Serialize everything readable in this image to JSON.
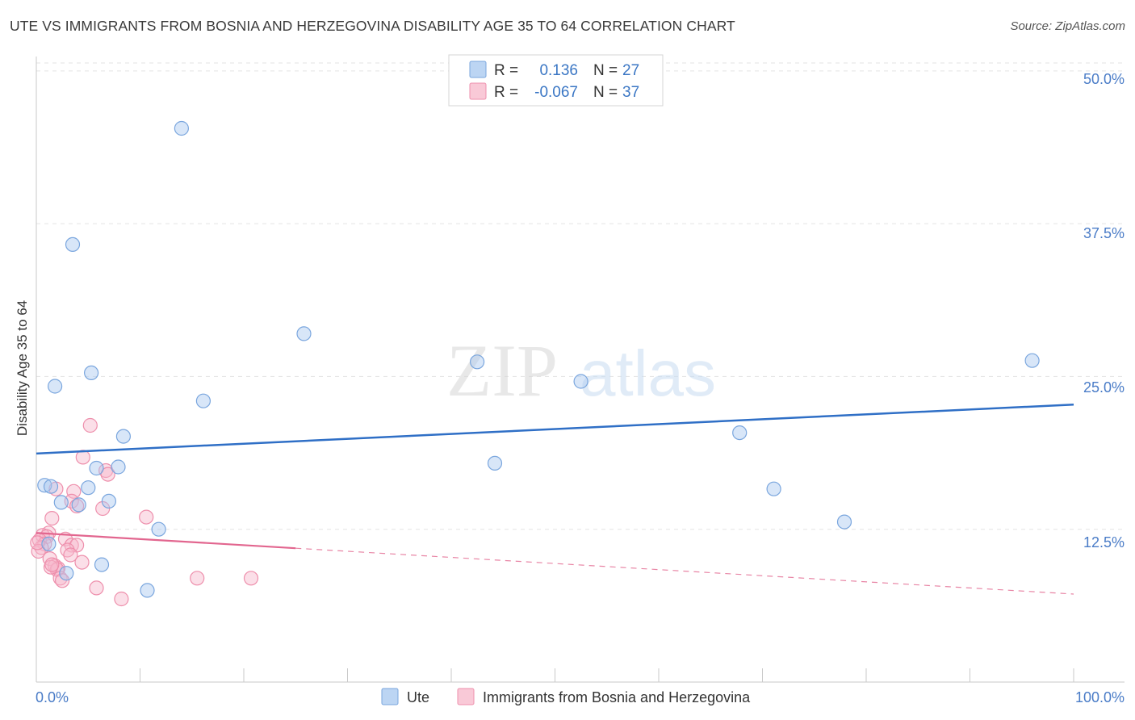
{
  "header": {
    "title": "UTE VS IMMIGRANTS FROM BOSNIA AND HERZEGOVINA DISABILITY AGE 35 TO 64 CORRELATION CHART",
    "source": "Source: ZipAtlas.com"
  },
  "watermark": {
    "part1": "ZIP",
    "part2": "atlas"
  },
  "colors": {
    "ute_fill": "#a8c8f0",
    "ute_stroke": "#7aa6de",
    "ute_line": "#2f6fc6",
    "bosnia_fill": "#f7b8cb",
    "bosnia_stroke": "#ee8fac",
    "bosnia_line": "#e2668f",
    "tick_text": "#4a7cc7",
    "grid": "#e3e3e3"
  },
  "legend": {
    "rows": [
      {
        "r_label": "R =",
        "r_value": "0.136",
        "n_label": "N =",
        "n_value": "27"
      },
      {
        "r_label": "R =",
        "r_value": "-0.067",
        "n_label": "N =",
        "n_value": "37"
      }
    ]
  },
  "chart_data": {
    "type": "scatter",
    "title": "UTE VS IMMIGRANTS FROM BOSNIA AND HERZEGOVINA DISABILITY AGE 35 TO 64 CORRELATION CHART",
    "xlabel": "",
    "ylabel": "Disability Age 35 to 64",
    "xlim": [
      0,
      100
    ],
    "ylim": [
      0,
      52.5
    ],
    "x_tick_labels": [
      "0.0%",
      "100.0%"
    ],
    "y_ticks": [
      12.5,
      25.0,
      37.5,
      50.0
    ],
    "y_tick_labels": [
      "12.5%",
      "25.0%",
      "37.5%",
      "50.0%"
    ],
    "grid": true,
    "legend_position": "top-center",
    "series": [
      {
        "name": "Ute",
        "r": 0.136,
        "n": 27,
        "trend": {
          "x": [
            0,
            100
          ],
          "y": [
            18.7,
            22.7
          ],
          "dashed_from": null
        },
        "points": [
          [
            14.0,
            45.3
          ],
          [
            3.5,
            35.8
          ],
          [
            25.8,
            28.5
          ],
          [
            42.5,
            26.2
          ],
          [
            96.0,
            26.3
          ],
          [
            5.3,
            25.3
          ],
          [
            52.5,
            24.6
          ],
          [
            1.8,
            24.2
          ],
          [
            16.1,
            23.0
          ],
          [
            8.4,
            20.1
          ],
          [
            67.8,
            20.4
          ],
          [
            44.2,
            17.9
          ],
          [
            5.8,
            17.5
          ],
          [
            7.9,
            17.6
          ],
          [
            0.8,
            16.1
          ],
          [
            1.4,
            16.0
          ],
          [
            5.0,
            15.9
          ],
          [
            71.1,
            15.8
          ],
          [
            2.4,
            14.7
          ],
          [
            4.1,
            14.5
          ],
          [
            7.0,
            14.8
          ],
          [
            11.8,
            12.5
          ],
          [
            77.9,
            13.1
          ],
          [
            6.3,
            9.6
          ],
          [
            2.9,
            8.9
          ],
          [
            10.7,
            7.5
          ],
          [
            1.2,
            11.3
          ]
        ]
      },
      {
        "name": "Immigrants from Bosnia and Herzegovina",
        "r": -0.067,
        "n": 37,
        "trend": {
          "x": [
            0,
            100
          ],
          "y": [
            12.2,
            7.2
          ],
          "dashed_from": 25
        },
        "points": [
          [
            5.2,
            21.0
          ],
          [
            4.5,
            18.4
          ],
          [
            6.7,
            17.3
          ],
          [
            6.9,
            17.0
          ],
          [
            1.9,
            15.8
          ],
          [
            3.6,
            15.6
          ],
          [
            3.4,
            14.8
          ],
          [
            3.9,
            14.4
          ],
          [
            6.4,
            14.2
          ],
          [
            1.5,
            13.4
          ],
          [
            10.6,
            13.5
          ],
          [
            1.2,
            12.2
          ],
          [
            0.6,
            12.0
          ],
          [
            1.0,
            11.9
          ],
          [
            0.3,
            11.6
          ],
          [
            2.8,
            11.7
          ],
          [
            0.8,
            11.3
          ],
          [
            3.4,
            11.2
          ],
          [
            3.9,
            11.2
          ],
          [
            0.5,
            11.0
          ],
          [
            3.0,
            10.8
          ],
          [
            0.2,
            10.7
          ],
          [
            3.3,
            10.4
          ],
          [
            1.3,
            10.1
          ],
          [
            4.4,
            9.8
          ],
          [
            1.8,
            9.5
          ],
          [
            2.1,
            9.3
          ],
          [
            2.0,
            9.2
          ],
          [
            1.4,
            9.4
          ],
          [
            1.5,
            9.6
          ],
          [
            2.3,
            8.5
          ],
          [
            2.5,
            8.3
          ],
          [
            5.8,
            7.7
          ],
          [
            15.5,
            8.5
          ],
          [
            20.7,
            8.5
          ],
          [
            8.2,
            6.8
          ],
          [
            0.1,
            11.4
          ]
        ]
      }
    ]
  }
}
